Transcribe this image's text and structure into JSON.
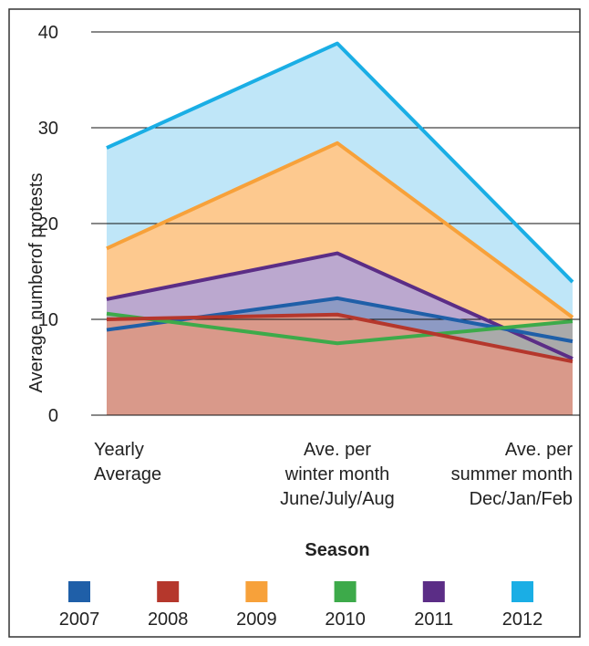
{
  "chart_data": {
    "type": "area",
    "x_label": "Season",
    "y_label": "Average numberof protests",
    "categories": [
      "Yearly\nAverage",
      "Ave. per\nwinter month\nJune/July/Aug",
      "Ave. per\nsummer month\nDec/Jan/Feb"
    ],
    "series": [
      {
        "name": "2007",
        "color": "#1f5fa8",
        "fill": "#8d9ac4",
        "values": [
          8.9,
          12.2,
          7.7
        ]
      },
      {
        "name": "2008",
        "color": "#b5372c",
        "fill": "#d9998a",
        "values": [
          10,
          10.5,
          5.6
        ]
      },
      {
        "name": "2009",
        "color": "#f7a13a",
        "fill": "#fdc98f",
        "values": [
          17.4,
          28.4,
          10.2
        ]
      },
      {
        "name": "2010",
        "color": "#3daa4a",
        "fill": "#aaaaaa",
        "values": [
          10.6,
          7.5,
          9.8
        ]
      },
      {
        "name": "2011",
        "color": "#5b2d86",
        "fill": "#bba8cf",
        "values": [
          12.1,
          16.9,
          5.9
        ]
      },
      {
        "name": "2012",
        "color": "#1aaee5",
        "fill": "#bfe6f8",
        "values": [
          27.9,
          38.8,
          13.9
        ]
      }
    ],
    "ylim": [
      0,
      40
    ],
    "yticks": [
      0,
      10,
      20,
      30,
      40
    ],
    "grid": true
  }
}
